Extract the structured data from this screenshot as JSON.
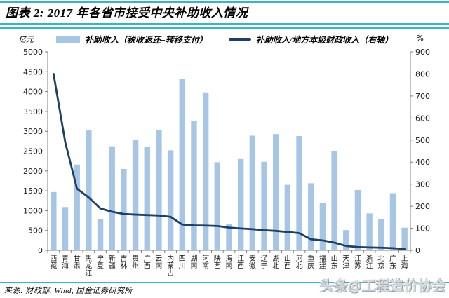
{
  "header": {
    "title": "图表 2:  2017 年各省市接受中央补助收入情况"
  },
  "legend": {
    "items": [
      {
        "label": "补助收入（税收返还+转移支付）",
        "swatch": "bar-swatch"
      },
      {
        "label": "补助收入/地方本级财政收入（右轴）",
        "swatch": "line-swatch"
      }
    ]
  },
  "footer": {
    "source": "来源: 财政部, Wind, 国金证券研究所",
    "watermark": "头条@工程造价协会"
  },
  "colors": {
    "bar_fill": "#a7c5e5",
    "line_stroke": "#1e4066",
    "axis_stroke": "#7f7f7f",
    "teal_rule": "#3ab4c0",
    "watermark_gray": "#d4dade"
  },
  "chart_data": {
    "type": "bar",
    "subtype": "bar-line-combo",
    "title": "2017 年各省市接受中央补助收入情况",
    "categories": [
      "西藏",
      "青海",
      "甘肃",
      "黑龙江",
      "宁夏",
      "新疆",
      "吉林",
      "贵州",
      "广西",
      "云南",
      "内蒙古",
      "四川",
      "湖南",
      "河南",
      "陕西",
      "海南",
      "江西",
      "安徽",
      "辽宁",
      "湖北",
      "山西",
      "河北",
      "重庆",
      "福建",
      "山东",
      "天津",
      "江苏",
      "浙江",
      "北京",
      "广东",
      "上海"
    ],
    "series": [
      {
        "name": "补助收入（税收返还+转移支付）",
        "type": "bar",
        "axis": "left",
        "unit": "亿元",
        "values": [
          1470,
          1090,
          2160,
          3020,
          790,
          2620,
          2050,
          2780,
          2600,
          3030,
          2520,
          4320,
          3270,
          3980,
          2220,
          670,
          2300,
          2890,
          2230,
          2930,
          1650,
          2880,
          1690,
          1190,
          2510,
          510,
          1520,
          930,
          780,
          1440,
          570
        ]
      },
      {
        "name": "补助收入/地方本级财政收入（右轴）",
        "type": "line",
        "axis": "right",
        "unit": "%",
        "values": [
          800,
          490,
          280,
          240,
          190,
          175,
          165,
          162,
          160,
          158,
          152,
          117,
          113,
          112,
          110,
          103,
          99,
          96,
          91,
          88,
          83,
          78,
          50,
          45,
          35,
          20,
          15,
          13,
          12,
          10,
          6
        ]
      }
    ],
    "left_axis": {
      "label": "亿元",
      "min": 0,
      "max": 5000,
      "step": 500
    },
    "right_axis": {
      "label": "%",
      "min": 0,
      "max": 900,
      "step": 100
    },
    "grid": false,
    "legend_position": "top"
  }
}
